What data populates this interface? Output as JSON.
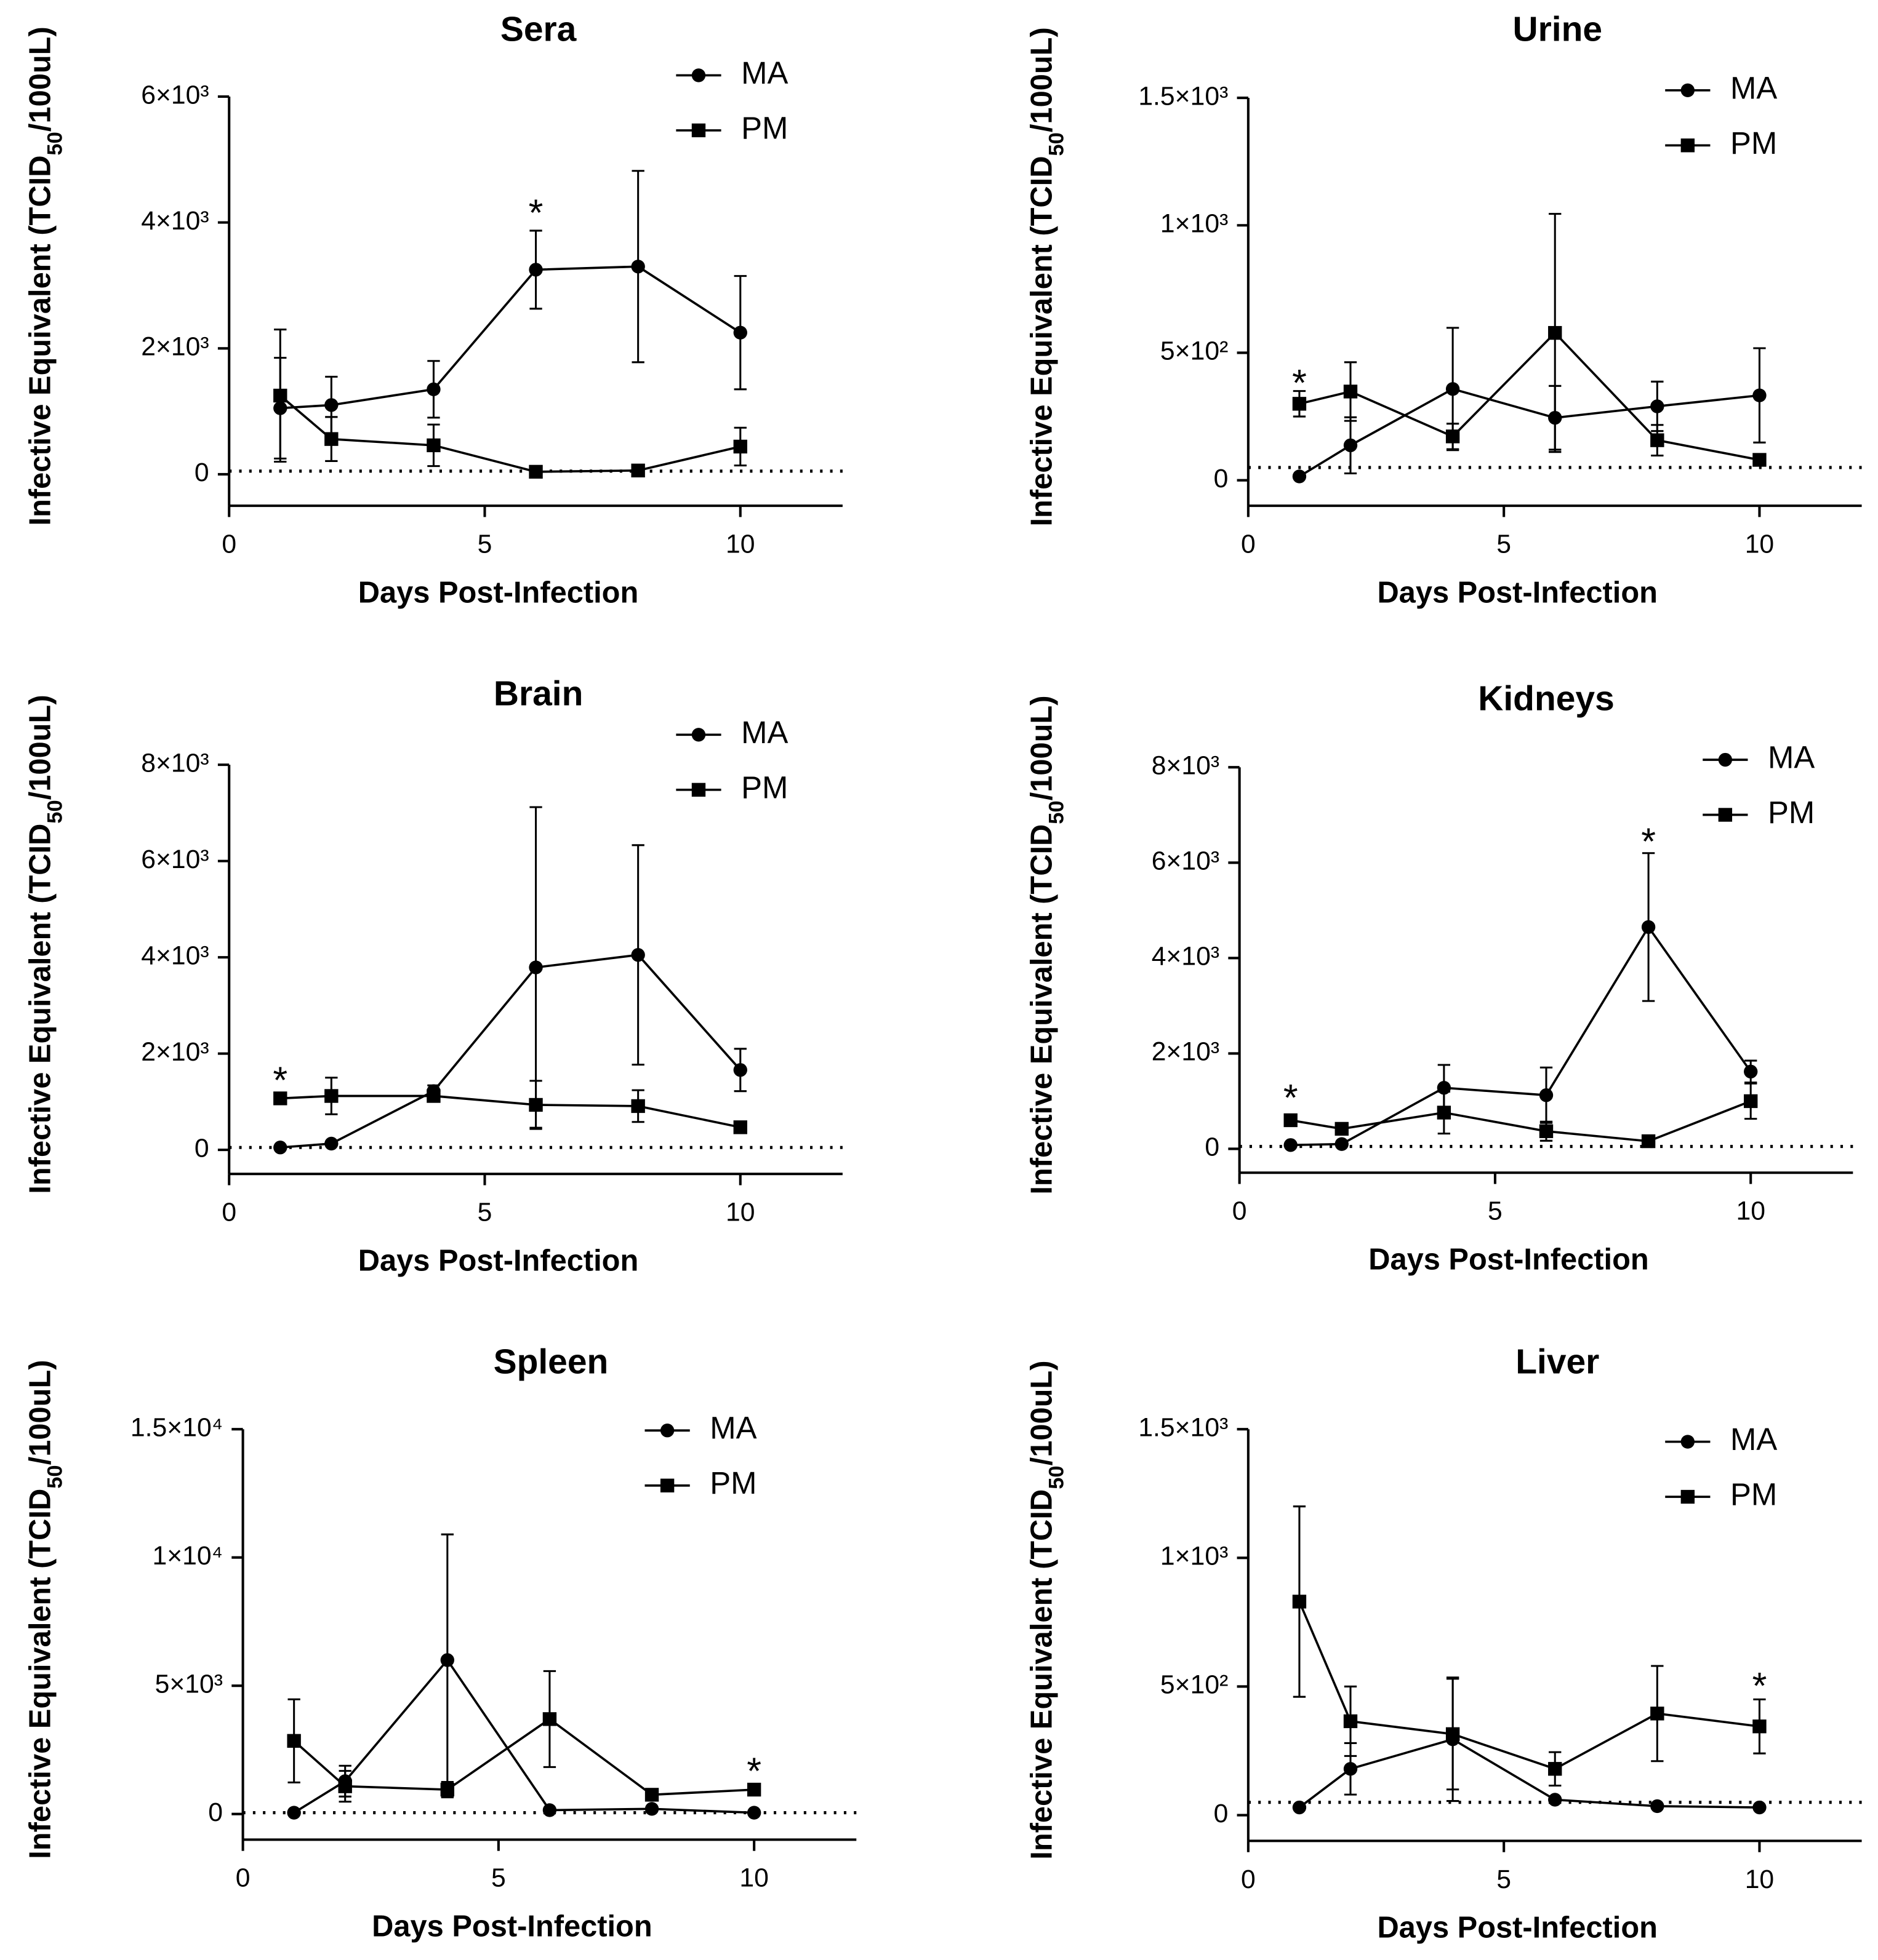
{
  "chart_data": [
    {
      "type": "line",
      "title": "Sera",
      "xlabel": "Days Post-Infection",
      "ylabel": [
        "Infective Equivalent (TCID",
        "50",
        "/100uL)"
      ],
      "x": [
        1,
        2,
        4,
        6,
        8,
        10
      ],
      "xlim": [
        0,
        12
      ],
      "xticks": [
        0,
        5,
        10
      ],
      "ylim": [
        -500,
        6000
      ],
      "yticks": [
        0,
        {
          "value": 2000,
          "label": "2×10³"
        },
        {
          "value": 4000,
          "label": "4×10³"
        },
        {
          "value": 6000,
          "label": "6×10³"
        }
      ],
      "grid": false,
      "threshold": 50,
      "series": [
        {
          "name": "MA",
          "color": "#000000",
          "marker": "circle",
          "values": [
            1050,
            1100,
            1350,
            3250,
            3300,
            2250
          ],
          "errors": [
            800,
            450,
            450,
            620,
            1520,
            900
          ]
        },
        {
          "name": "PM",
          "color": "#000000",
          "marker": "square",
          "values": [
            1250,
            560,
            460,
            40,
            60,
            440
          ],
          "errors": [
            1050,
            350,
            330,
            20,
            10,
            300
          ]
        }
      ],
      "annotations": [
        {
          "text": "*",
          "x": 6,
          "y": 4350
        }
      ]
    },
    {
      "type": "line",
      "title": "Urine",
      "xlabel": "Days Post-Infection",
      "ylabel": [
        "Infective Equivalent (TCID",
        "50",
        "/100uL)"
      ],
      "x": [
        1,
        2,
        4,
        6,
        8,
        10
      ],
      "xlim": [
        0,
        12
      ],
      "xticks": [
        0,
        5,
        10
      ],
      "ylim": [
        -100,
        1500
      ],
      "yticks": [
        0,
        {
          "value": 500,
          "label": "5×10²"
        },
        {
          "value": 1000,
          "label": "1×10³"
        },
        {
          "value": 1500,
          "label": "1.5×10³"
        }
      ],
      "grid": false,
      "threshold": 50,
      "series": [
        {
          "name": "MA",
          "color": "#000000",
          "marker": "circle",
          "values": [
            15,
            137,
            358,
            245,
            290,
            333
          ],
          "errors": [
            5,
            110,
            240,
            125,
            97,
            185
          ]
        },
        {
          "name": "PM",
          "color": "#000000",
          "marker": "square",
          "values": [
            300,
            348,
            172,
            578,
            157,
            80
          ],
          "errors": [
            50,
            115,
            50,
            467,
            60,
            10
          ]
        }
      ],
      "annotations": [
        {
          "text": "*",
          "x": 1,
          "y": 430
        }
      ]
    },
    {
      "type": "line",
      "title": "Brain",
      "xlabel": "Days Post-Infection",
      "ylabel": [
        "Infective Equivalent (TCID",
        "50",
        "/100uL)"
      ],
      "x": [
        1,
        2,
        4,
        6,
        8,
        10
      ],
      "xlim": [
        0,
        12
      ],
      "xticks": [
        0,
        5,
        10
      ],
      "ylim": [
        -500,
        8000
      ],
      "yticks": [
        0,
        {
          "value": 2000,
          "label": "2×10³"
        },
        {
          "value": 4000,
          "label": "4×10³"
        },
        {
          "value": 6000,
          "label": "6×10³"
        },
        {
          "value": 8000,
          "label": "8×10³"
        }
      ],
      "grid": false,
      "threshold": 50,
      "series": [
        {
          "name": "MA",
          "color": "#000000",
          "marker": "circle",
          "values": [
            50,
            130,
            1220,
            3790,
            4050,
            1660
          ],
          "errors": [
            10,
            20,
            120,
            3330,
            2280,
            440
          ]
        },
        {
          "name": "PM",
          "color": "#000000",
          "marker": "square",
          "values": [
            1070,
            1120,
            1120,
            935,
            910,
            470
          ],
          "errors": [
            30,
            380,
            100,
            500,
            330,
            30
          ]
        }
      ],
      "annotations": [
        {
          "text": "*",
          "x": 1,
          "y": 1700
        }
      ]
    },
    {
      "type": "line",
      "title": "Kidneys",
      "xlabel": "Days Post-Infection",
      "ylabel": [
        "Infective Equivalent (TCID",
        "50",
        "/100uL)"
      ],
      "x": [
        1,
        2,
        4,
        6,
        8,
        10
      ],
      "xlim": [
        0,
        12
      ],
      "xticks": [
        0,
        5,
        10
      ],
      "ylim": [
        -500,
        8000
      ],
      "yticks": [
        0,
        {
          "value": 2000,
          "label": "2×10³"
        },
        {
          "value": 4000,
          "label": "4×10³"
        },
        {
          "value": 6000,
          "label": "6×10³"
        },
        {
          "value": 8000,
          "label": "8×10³"
        }
      ],
      "grid": false,
      "threshold": 50,
      "series": [
        {
          "name": "MA",
          "color": "#000000",
          "marker": "circle",
          "values": [
            80,
            100,
            1280,
            1125,
            4650,
            1620
          ],
          "errors": [
            10,
            20,
            480,
            580,
            1550,
            230
          ]
        },
        {
          "name": "PM",
          "color": "#000000",
          "marker": "square",
          "values": [
            600,
            420,
            760,
            370,
            160,
            1000
          ],
          "errors": [
            30,
            120,
            440,
            200,
            30,
            370
          ]
        }
      ],
      "annotations": [
        {
          "text": "*",
          "x": 1,
          "y": 1330
        },
        {
          "text": "*",
          "x": 8,
          "y": 6700
        }
      ]
    },
    {
      "type": "line",
      "title": "Spleen",
      "xlabel": "Days Post-Infection",
      "ylabel": [
        "Infective Equivalent (TCID",
        "50",
        "/100uL)"
      ],
      "x": [
        1,
        2,
        4,
        6,
        8,
        10
      ],
      "xlim": [
        0,
        12
      ],
      "xticks": [
        0,
        5,
        10
      ],
      "ylim": [
        -1000,
        15000
      ],
      "yticks": [
        0,
        {
          "value": 5000,
          "label": "5×10³"
        },
        {
          "value": 10000,
          "label": "1×10⁴"
        },
        {
          "value": 15000,
          "label": "1.5×10⁴"
        }
      ],
      "grid": false,
      "threshold": 50,
      "series": [
        {
          "name": "MA",
          "color": "#000000",
          "marker": "circle",
          "values": [
            50,
            1280,
            6000,
            150,
            200,
            50
          ],
          "errors": [
            10,
            600,
            4900,
            20,
            20,
            10
          ]
        },
        {
          "name": "PM",
          "color": "#000000",
          "marker": "square",
          "values": [
            2850,
            1080,
            950,
            3700,
            750,
            950
          ],
          "errors": [
            1620,
            600,
            300,
            1870,
            150,
            50
          ]
        }
      ],
      "annotations": [
        {
          "text": "*",
          "x": 10,
          "y": 2150
        }
      ]
    },
    {
      "type": "line",
      "title": "Liver",
      "xlabel": "Days Post-Infection",
      "ylabel": [
        "Infective Equivalent (TCID",
        "50",
        "/100uL)"
      ],
      "x": [
        1,
        2,
        4,
        6,
        8,
        10
      ],
      "xlim": [
        0,
        12
      ],
      "xticks": [
        0,
        5,
        10
      ],
      "ylim": [
        -100,
        1500
      ],
      "yticks": [
        0,
        {
          "value": 500,
          "label": "5×10²"
        },
        {
          "value": 1000,
          "label": "1×10³"
        },
        {
          "value": 1500,
          "label": "1.5×10³"
        }
      ],
      "grid": false,
      "threshold": 50,
      "series": [
        {
          "name": "MA",
          "color": "#000000",
          "marker": "circle",
          "values": [
            30,
            180,
            295,
            60,
            35,
            30
          ],
          "errors": [
            5,
            100,
            240,
            5,
            5,
            5
          ]
        },
        {
          "name": "PM",
          "color": "#000000",
          "marker": "square",
          "values": [
            830,
            365,
            315,
            180,
            395,
            345
          ],
          "errors": [
            370,
            135,
            215,
            65,
            185,
            105
          ]
        }
      ],
      "annotations": [
        {
          "text": "*",
          "x": 10,
          "y": 550
        }
      ]
    }
  ]
}
